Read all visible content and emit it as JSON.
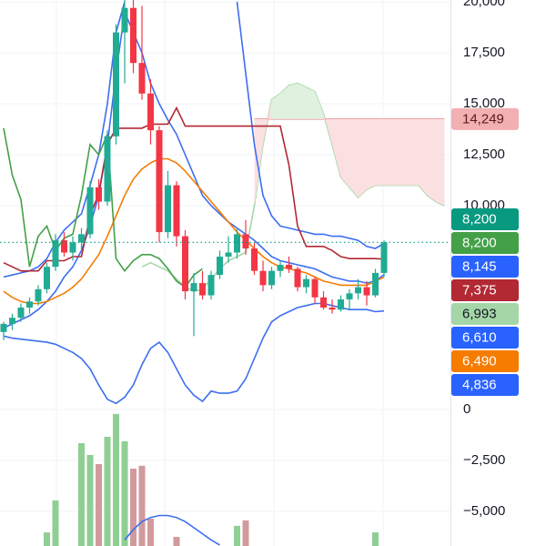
{
  "chart_data": {
    "type": "candlestick",
    "x": [
      0,
      1,
      2,
      3,
      4,
      5,
      6,
      7,
      8,
      9,
      10,
      11,
      12,
      13,
      14,
      15,
      16,
      17,
      18,
      19,
      20,
      21,
      22,
      23,
      24,
      25,
      26,
      27,
      28,
      29,
      30,
      31,
      32,
      33,
      34,
      35,
      36,
      37,
      38,
      39,
      40,
      41,
      42,
      43,
      44,
      45,
      46,
      47,
      48,
      49,
      50,
      51
    ],
    "xlim": [
      -0.42,
      51.68
    ],
    "ylim": [
      -6697,
      20089
    ],
    "yticks": [
      {
        "value": 20000,
        "label": "20,000"
      },
      {
        "value": 17500,
        "label": "17,500"
      },
      {
        "value": 15000,
        "label": "15,000"
      },
      {
        "value": 12500,
        "label": "12,500"
      },
      {
        "value": 10000,
        "label": "10,000"
      },
      0,
      {
        "value": -2500,
        "label": "−2,500"
      },
      {
        "value": -5000,
        "label": "−5,000"
      }
    ],
    "grid": true,
    "series": [
      {
        "type": "line",
        "color": "#a5d6a7",
        "values": [
          null,
          null,
          null,
          null,
          null,
          null,
          null,
          null,
          null,
          null,
          null,
          null,
          null,
          null,
          null,
          null,
          7000,
          7200,
          7000,
          6800,
          6400,
          6000,
          5800,
          5900,
          6400,
          6900,
          7300,
          7500,
          7700,
          10000,
          13000,
          15200,
          15500,
          15900,
          16000,
          15800,
          15600,
          14500,
          13000,
          11400,
          10900,
          10400,
          10800,
          11000,
          11000,
          11000,
          11000,
          11000,
          11000,
          10500,
          10200,
          10000
        ]
      },
      {
        "type": "line",
        "color": "#ef9a9a",
        "values": [
          null,
          null,
          null,
          null,
          null,
          null,
          null,
          null,
          null,
          null,
          null,
          null,
          null,
          null,
          null,
          null,
          null,
          null,
          null,
          null,
          null,
          null,
          null,
          null,
          null,
          null,
          null,
          null,
          null,
          14249,
          14249,
          14249,
          14249,
          14249,
          14249,
          14249,
          14249,
          14249,
          14249,
          14249,
          14249,
          14249,
          14249,
          14249,
          14249,
          14249,
          14249,
          14249,
          14249,
          14249,
          14249,
          14249
        ]
      },
      {
        "type": "cloud",
        "between": [
          0,
          1
        ],
        "up_color": "#dff1df",
        "down_color": "#fbe0e1"
      },
      {
        "type": "line",
        "color": "#3d6ef0",
        "values": [
          6500,
          6600,
          6700,
          6800,
          7000,
          7400,
          8200,
          8800,
          9200,
          9600,
          11000,
          12500,
          15000,
          18500,
          20000,
          null,
          null,
          null,
          null,
          null,
          null,
          null,
          null,
          null,
          null,
          null,
          null,
          20000,
          16500,
          13000,
          10500,
          9500,
          9000,
          8900,
          8800,
          8700,
          8600,
          8600,
          8500,
          8500,
          8400,
          8300,
          8000,
          7900,
          8145,
          null,
          null,
          null,
          null,
          null,
          null,
          null
        ]
      },
      {
        "type": "line",
        "color": "#3d6ef0",
        "values": [
          4000,
          4200,
          4400,
          4600,
          4900,
          5300,
          5800,
          6500,
          7000,
          7800,
          9000,
          10500,
          13000,
          16500,
          19500,
          18500,
          17500,
          16000,
          15000,
          14200,
          13500,
          12500,
          11500,
          10500,
          10000,
          9600,
          9200,
          8900,
          8600,
          8300,
          7900,
          7500,
          7300,
          7200,
          7100,
          7000,
          6900,
          6700,
          6500,
          6400,
          6300,
          6300,
          6200,
          6300,
          6610,
          null,
          null,
          null,
          null,
          null,
          null,
          null
        ]
      },
      {
        "type": "line",
        "color": "#3d6ef0",
        "values": [
          3600,
          3500,
          3450,
          3400,
          3350,
          3300,
          3200,
          3000,
          2800,
          2500,
          2000,
          1200,
          500,
          300,
          600,
          1200,
          2200,
          3000,
          3300,
          2800,
          2000,
          1200,
          700,
          400,
          900,
          800,
          800,
          900,
          1500,
          2500,
          3500,
          4300,
          4600,
          4800,
          5000,
          5100,
          5200,
          5200,
          5100,
          5000,
          4900,
          4900,
          4900,
          4800,
          4836,
          null,
          null,
          null,
          null,
          null,
          null,
          null
        ]
      },
      {
        "type": "line",
        "color": "#f57c00",
        "values": [
          5800,
          5500,
          5300,
          5200,
          5200,
          5300,
          5500,
          5700,
          6000,
          6400,
          7000,
          7600,
          8500,
          9500,
          10500,
          11300,
          11800,
          12100,
          12300,
          12300,
          12100,
          11700,
          11200,
          10700,
          10200,
          9700,
          9200,
          8700,
          8300,
          7900,
          7500,
          7200,
          7000,
          6900,
          6800,
          6700,
          6500,
          6300,
          6200,
          6100,
          6100,
          6100,
          6100,
          6300,
          6490,
          null,
          null,
          null,
          null,
          null,
          null,
          null
        ]
      },
      {
        "type": "line",
        "color": "#b22833",
        "values": [
          7200,
          7000,
          6800,
          6800,
          6800,
          7300,
          7300,
          7300,
          7500,
          7500,
          9500,
          10600,
          13000,
          13800,
          13800,
          13800,
          13800,
          14000,
          14000,
          14000,
          14800,
          13900,
          13900,
          13900,
          13900,
          13900,
          13900,
          13900,
          13900,
          13900,
          13900,
          13900,
          13900,
          12000,
          9000,
          8000,
          8000,
          8000,
          7800,
          7500,
          7400,
          7400,
          7400,
          7400,
          7375,
          null,
          null,
          null,
          null,
          null,
          null,
          null
        ]
      },
      {
        "type": "line",
        "color": "#43a047",
        "values": [
          13800,
          11500,
          10300,
          7000,
          8500,
          9000,
          7800,
          8400,
          8600,
          10500,
          13000,
          12500,
          13500,
          7400,
          6800,
          7300,
          7600,
          7600,
          7400,
          6900,
          6300,
          6000,
          6600,
          6900,
          null,
          null,
          null,
          null,
          null,
          null,
          null,
          null,
          null,
          null,
          null,
          null,
          null,
          null,
          null,
          null,
          null,
          null,
          null,
          null,
          null,
          null,
          null,
          null,
          null,
          null,
          null,
          null
        ]
      },
      {
        "type": "histogram",
        "up_color": "#8fcf94",
        "down_color": "#d19a9c",
        "values": [
          null,
          null,
          null,
          null,
          null,
          -6030,
          -4460,
          null,
          null,
          -1650,
          -2230,
          -2680,
          -1340,
          -220,
          -1560,
          -2900,
          -2760,
          -5360,
          null,
          null,
          -6250,
          null,
          null,
          null,
          null,
          null,
          null,
          -5710,
          -5440,
          null,
          null,
          null,
          null,
          null,
          null,
          null,
          null,
          null,
          null,
          null,
          null,
          null,
          null,
          -6030,
          null,
          null,
          null,
          null,
          null,
          null,
          null,
          null
        ]
      },
      {
        "type": "line",
        "color": "#3d6ef0",
        "values": [
          null,
          null,
          null,
          null,
          null,
          null,
          null,
          null,
          null,
          null,
          null,
          null,
          null,
          null,
          -6400,
          -5900,
          -5500,
          -5300,
          -5200,
          -5200,
          -5300,
          -5500,
          -5800,
          -6100,
          -6400,
          -6650,
          null,
          null,
          null,
          null,
          null,
          null,
          null,
          null,
          null,
          null,
          null,
          null,
          null,
          null,
          null,
          null,
          null,
          null,
          null,
          null,
          null,
          null,
          null,
          null,
          null,
          null
        ]
      },
      {
        "type": "candles",
        "up_color": "#22ab94",
        "down_color": "#f23645",
        "open": [
          3800,
          4200,
          4500,
          5000,
          5300,
          5900,
          7000,
          8300,
          7700,
          8200,
          8600,
          10900,
          10200,
          13400,
          18500,
          19700,
          17000,
          15500,
          13700,
          8700,
          11000,
          8500,
          5800,
          6200,
          5600,
          6600,
          7500,
          7700,
          8600,
          7900,
          6800,
          6100,
          6800,
          7100,
          6900,
          6000,
          6400,
          5500,
          5000,
          4900,
          5400,
          5700,
          6000,
          5600,
          6700,
          null,
          null,
          null,
          null,
          null,
          null,
          null
        ],
        "high": [
          4300,
          4700,
          5200,
          5500,
          6100,
          7200,
          8600,
          8700,
          8500,
          8900,
          11200,
          11300,
          13700,
          18900,
          20100,
          20100,
          19800,
          16200,
          13900,
          11700,
          11200,
          8800,
          6700,
          6800,
          6800,
          7800,
          8500,
          8900,
          9300,
          8200,
          7300,
          7000,
          7300,
          7500,
          7000,
          6600,
          6500,
          5800,
          5400,
          5600,
          5900,
          6400,
          6300,
          6900,
          8300,
          null,
          null,
          null,
          null,
          null,
          null,
          null
        ],
        "low": [
          3400,
          3900,
          4300,
          4700,
          5100,
          5700,
          6800,
          7500,
          7300,
          7800,
          8400,
          9800,
          10000,
          13000,
          16000,
          16500,
          15200,
          13000,
          8200,
          8400,
          8000,
          5400,
          3600,
          5400,
          5400,
          6400,
          7200,
          7400,
          7600,
          6600,
          5800,
          5900,
          6500,
          6700,
          5800,
          5700,
          5200,
          4900,
          4700,
          4800,
          4900,
          5400,
          5100,
          5500,
          6500,
          null,
          null,
          null,
          null,
          null,
          null,
          null
        ],
        "close": [
          4200,
          4500,
          5000,
          5300,
          5900,
          7000,
          8300,
          7700,
          8200,
          8600,
          10900,
          10200,
          13400,
          18500,
          19700,
          17000,
          15500,
          13700,
          8700,
          11000,
          8500,
          5800,
          6200,
          5600,
          6600,
          7500,
          7700,
          8600,
          7900,
          6800,
          6100,
          6800,
          7100,
          6900,
          6000,
          6400,
          5500,
          5000,
          4900,
          5400,
          5700,
          6000,
          5600,
          6700,
          8200,
          null,
          null,
          null,
          null,
          null,
          null,
          null
        ]
      }
    ],
    "price_labels": [
      {
        "value": 14249,
        "label": "14,249",
        "bg": "#f3b0b3",
        "fg": "#5b1a1d"
      },
      {
        "value": 8200,
        "label": "8,200",
        "bg": "#089981",
        "fg": "#ffffff",
        "dotted_line": true
      },
      {
        "value": 8200,
        "label": "8,200",
        "bg": "#43a047",
        "fg": "#ffffff"
      },
      {
        "value": 8145,
        "label": "8,145",
        "bg": "#2962ff",
        "fg": "#ffffff"
      },
      {
        "value": 7375,
        "label": "7,375",
        "bg": "#b22833",
        "fg": "#ffffff"
      },
      {
        "value": 6993,
        "label": "6,993",
        "bg": "#a5d6a7",
        "fg": "#131722"
      },
      {
        "value": 6610,
        "label": "6,610",
        "bg": "#2962ff",
        "fg": "#ffffff"
      },
      {
        "value": 6490,
        "label": "6,490",
        "bg": "#f57c00",
        "fg": "#ffffff"
      },
      {
        "value": 4836,
        "label": "4,836",
        "bg": "#2962ff",
        "fg": "#ffffff"
      }
    ]
  }
}
